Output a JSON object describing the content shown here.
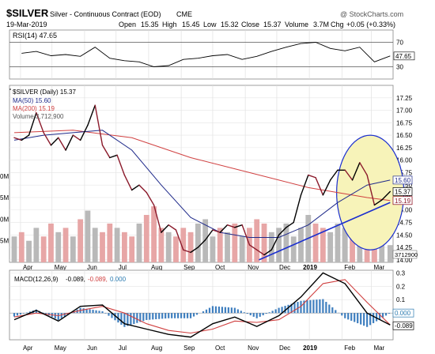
{
  "header": {
    "symbol": "$SILVER",
    "description": "Silver - Continuous Contract (EOD)",
    "exchange": "CME",
    "watermark": "@ StockCharts.com",
    "date": "19-Mar-2019",
    "open_label": "Open",
    "open": "15.35",
    "high_label": "High",
    "high": "15.45",
    "low_label": "Low",
    "low": "15.32",
    "close_label": "Close",
    "close": "15.37",
    "volume_label": "Volume",
    "volume": "3.7M",
    "chg_label": "Chg",
    "chg": "+0.05 (+0.33%)"
  },
  "chart_data": [
    {
      "type": "line",
      "name": "rsi-panel",
      "legend": "RSI(14) 47.65",
      "ylim": [
        10,
        90
      ],
      "y_ticks": [
        "70",
        "50",
        "30"
      ],
      "reference_lines": [
        70,
        30
      ],
      "last_value": "47.65",
      "series": [
        {
          "name": "RSI(14)",
          "x": [
            "2018-04-02",
            "2018-04-16",
            "2018-04-30",
            "2018-05-14",
            "2018-05-28",
            "2018-06-11",
            "2018-06-25",
            "2018-07-09",
            "2018-07-23",
            "2018-08-06",
            "2018-08-20",
            "2018-09-03",
            "2018-09-17",
            "2018-10-01",
            "2018-10-15",
            "2018-10-29",
            "2018-11-12",
            "2018-11-26",
            "2018-12-10",
            "2018-12-24",
            "2019-01-07",
            "2019-01-21",
            "2019-02-04",
            "2019-02-18",
            "2019-03-04",
            "2019-03-19"
          ],
          "values": [
            52,
            55,
            48,
            50,
            47,
            62,
            44,
            40,
            38,
            30,
            32,
            42,
            44,
            48,
            50,
            42,
            47,
            55,
            62,
            68,
            70,
            60,
            56,
            62,
            38,
            47.65
          ]
        }
      ]
    },
    {
      "type": "line",
      "name": "price-panel",
      "legend": "$SILVER (Daily) 15.37",
      "ylim": [
        13.95,
        17.5
      ],
      "y_ticks": [
        "17.25",
        "17.00",
        "16.75",
        "16.50",
        "16.25",
        "16.00",
        "15.75",
        "15.50",
        "15.25",
        "15.00",
        "14.75",
        "14.50",
        "14.25",
        "14.00"
      ],
      "right_labels": {
        "ma50": "15.60",
        "ma200": "15.19",
        "close": "15.37",
        "low": "15.19"
      },
      "series": [
        {
          "name": "$SILVER (Daily)",
          "x": [
            "2018-03-26",
            "2018-04-02",
            "2018-04-09",
            "2018-04-16",
            "2018-04-23",
            "2018-04-30",
            "2018-05-07",
            "2018-05-14",
            "2018-05-21",
            "2018-05-28",
            "2018-06-04",
            "2018-06-11",
            "2018-06-18",
            "2018-06-25",
            "2018-07-02",
            "2018-07-09",
            "2018-07-16",
            "2018-07-23",
            "2018-07-30",
            "2018-08-06",
            "2018-08-13",
            "2018-08-20",
            "2018-08-27",
            "2018-09-03",
            "2018-09-10",
            "2018-09-17",
            "2018-09-24",
            "2018-10-01",
            "2018-10-08",
            "2018-10-15",
            "2018-10-22",
            "2018-10-29",
            "2018-11-05",
            "2018-11-12",
            "2018-11-19",
            "2018-11-26",
            "2018-12-03",
            "2018-12-10",
            "2018-12-17",
            "2018-12-24",
            "2018-12-31",
            "2019-01-07",
            "2019-01-14",
            "2019-01-21",
            "2019-01-28",
            "2019-02-04",
            "2019-02-11",
            "2019-02-18",
            "2019-02-25",
            "2019-03-04",
            "2019-03-11",
            "2019-03-19"
          ],
          "values": [
            16.45,
            16.4,
            16.5,
            16.95,
            16.55,
            16.3,
            16.45,
            16.2,
            16.5,
            16.4,
            16.7,
            17.1,
            16.3,
            16.05,
            16.1,
            15.7,
            15.4,
            15.5,
            15.35,
            15.1,
            14.55,
            14.7,
            14.6,
            14.2,
            14.15,
            14.25,
            14.4,
            14.6,
            14.55,
            14.7,
            14.65,
            14.7,
            14.3,
            14.2,
            14.1,
            14.2,
            14.5,
            14.65,
            14.75,
            15.3,
            15.7,
            15.65,
            15.3,
            15.6,
            15.8,
            15.8,
            15.6,
            15.95,
            15.7,
            15.1,
            15.2,
            15.37
          ]
        },
        {
          "name": "MA(50)",
          "legend": "MA(50) 15.60",
          "color": "#1f2a8a",
          "x": [
            "2018-03-26",
            "2018-04-23",
            "2018-05-21",
            "2018-06-18",
            "2018-07-16",
            "2018-08-13",
            "2018-09-10",
            "2018-10-08",
            "2018-11-05",
            "2018-12-03",
            "2018-12-31",
            "2019-01-28",
            "2019-02-25",
            "2019-03-19"
          ],
          "values": [
            16.4,
            16.5,
            16.55,
            16.6,
            16.2,
            15.5,
            14.85,
            14.55,
            14.45,
            14.45,
            14.7,
            15.15,
            15.5,
            15.6
          ]
        },
        {
          "name": "MA(200)",
          "legend": "MA(200) 15.19",
          "color": "#d04040",
          "x": [
            "2018-03-26",
            "2018-05-21",
            "2018-07-16",
            "2018-09-10",
            "2018-11-05",
            "2018-12-31",
            "2019-02-25",
            "2019-03-19"
          ],
          "values": [
            16.55,
            16.6,
            16.45,
            16.05,
            15.75,
            15.45,
            15.25,
            15.19
          ]
        },
        {
          "name": "Volume",
          "legend": "Volume 3,712,900",
          "volume_axis": {
            "labels": [
              "0M",
              "5M",
              "0M",
              "5M"
            ],
            "values": [
              20,
              15,
              10,
              5
            ],
            "last_label": "3712900"
          },
          "values": [
            6,
            7,
            5,
            8,
            6,
            9,
            7,
            8,
            6,
            10,
            12,
            8,
            7,
            9,
            8,
            7,
            6,
            9,
            11,
            13,
            8,
            7,
            6,
            8,
            7,
            9,
            10,
            6,
            8,
            7,
            9,
            6,
            8,
            10,
            9,
            7,
            8,
            9,
            6,
            8,
            11,
            9,
            8,
            7,
            9,
            8,
            7,
            6,
            8,
            10,
            7,
            4
          ]
        }
      ],
      "annotations": [
        {
          "type": "trendline",
          "color": "#1a2ecf",
          "from": {
            "x": "2018-11-14",
            "y": 14.0
          },
          "to": {
            "x": "2019-03-19",
            "y": 15.15
          }
        },
        {
          "type": "ellipse",
          "fill": "#f7f3b9",
          "stroke": "#1a2ecf",
          "center": {
            "x": "2019-02-28",
            "y": 15.35
          },
          "rx_days": 32,
          "ry": 1.15
        }
      ],
      "x_tick_labels": [
        "Apr",
        "May",
        "Jun",
        "Jul",
        "Aug",
        "Sep",
        "Oct",
        "Nov",
        "Dec",
        "2019",
        "Feb",
        "Mar"
      ]
    },
    {
      "type": "line",
      "name": "macd-panel",
      "legend": "MACD(12,26,9) -0.089, -0.089, 0.000",
      "legend_parts": [
        "MACD(12,26,9)",
        "-0.089,",
        "-0.089,",
        "0.000"
      ],
      "ylim": [
        -0.2,
        0.32
      ],
      "y_ticks": [
        "0.3",
        "0.2",
        "0.1",
        "0.000",
        "-0.089"
      ],
      "zero_label": "0.000",
      "last_label": "-0.089",
      "series": [
        {
          "name": "MACD",
          "color": "#000000",
          "x": [
            "2018-03-26",
            "2018-04-16",
            "2018-05-07",
            "2018-05-28",
            "2018-06-18",
            "2018-07-09",
            "2018-07-30",
            "2018-08-20",
            "2018-09-10",
            "2018-10-01",
            "2018-10-22",
            "2018-11-12",
            "2018-12-03",
            "2018-12-24",
            "2019-01-14",
            "2019-02-04",
            "2019-02-25",
            "2019-03-19"
          ],
          "values": [
            -0.05,
            0.02,
            -0.06,
            0.05,
            0.06,
            -0.08,
            -0.12,
            -0.16,
            -0.18,
            -0.08,
            -0.03,
            -0.1,
            -0.02,
            0.12,
            0.3,
            0.22,
            0.0,
            -0.089
          ]
        },
        {
          "name": "Signal",
          "color": "#d04040",
          "x": [
            "2018-03-26",
            "2018-04-16",
            "2018-05-07",
            "2018-05-28",
            "2018-06-18",
            "2018-07-09",
            "2018-07-30",
            "2018-08-20",
            "2018-09-10",
            "2018-10-01",
            "2018-10-22",
            "2018-11-12",
            "2018-12-03",
            "2018-12-24",
            "2019-01-14",
            "2019-02-04",
            "2019-02-25",
            "2019-03-19"
          ],
          "values": [
            -0.03,
            0.0,
            -0.02,
            0.02,
            0.05,
            0.0,
            -0.08,
            -0.13,
            -0.15,
            -0.12,
            -0.06,
            -0.07,
            -0.05,
            0.05,
            0.22,
            0.25,
            0.08,
            -0.089
          ]
        }
      ],
      "x_tick_labels": [
        "Apr",
        "May",
        "Jun",
        "Jul",
        "Aug",
        "Sep",
        "Oct",
        "Nov",
        "Dec",
        "2019",
        "Feb",
        "Mar"
      ]
    }
  ]
}
